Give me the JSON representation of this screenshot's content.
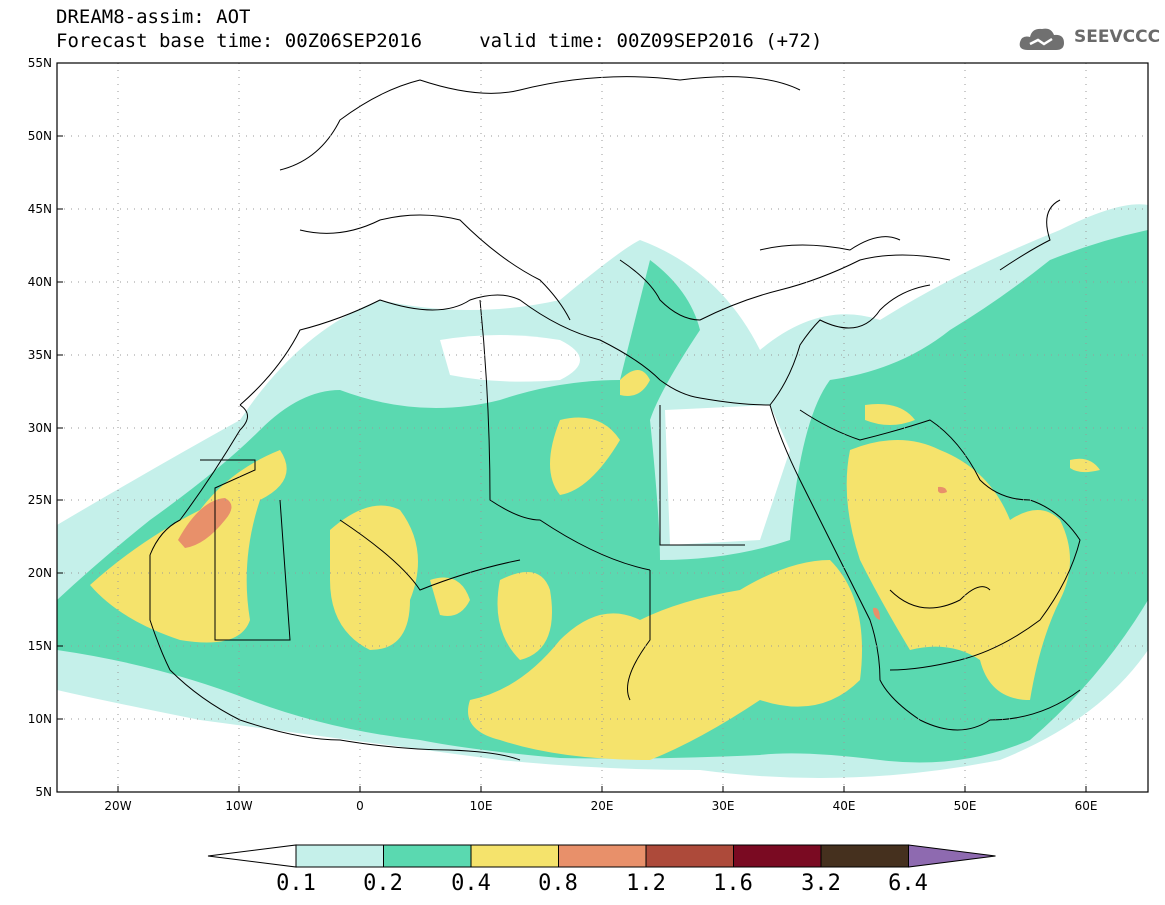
{
  "title": {
    "line1": "DREAM8-assim: AOT",
    "line2": "Forecast base time: 00Z06SEP2016     valid time: 00Z09SEP2016 (+72)"
  },
  "logo": {
    "text": "SEEVCCC",
    "icon": "cloud-icon"
  },
  "map": {
    "lon_range": [
      -25,
      65
    ],
    "lat_range": [
      5,
      55
    ],
    "x_ticks": [
      "20W",
      "10W",
      "0",
      "10E",
      "20E",
      "30E",
      "40E",
      "50E",
      "60E"
    ],
    "y_ticks": [
      "5N",
      "10N",
      "15N",
      "20N",
      "25N",
      "30N",
      "35N",
      "40N",
      "45N",
      "50N",
      "55N"
    ],
    "grid": "dotted"
  },
  "colorbar": {
    "labels": [
      "0.1",
      "0.2",
      "0.4",
      "0.8",
      "1.2",
      "1.6",
      "3.2",
      "6.4"
    ],
    "colors": [
      "#ffffff",
      "#c5f0ea",
      "#5ad9b0",
      "#f5e36c",
      "#e8906a",
      "#ad4a3a",
      "#7a0a22",
      "#45301e",
      "#8e6ab0"
    ]
  }
}
